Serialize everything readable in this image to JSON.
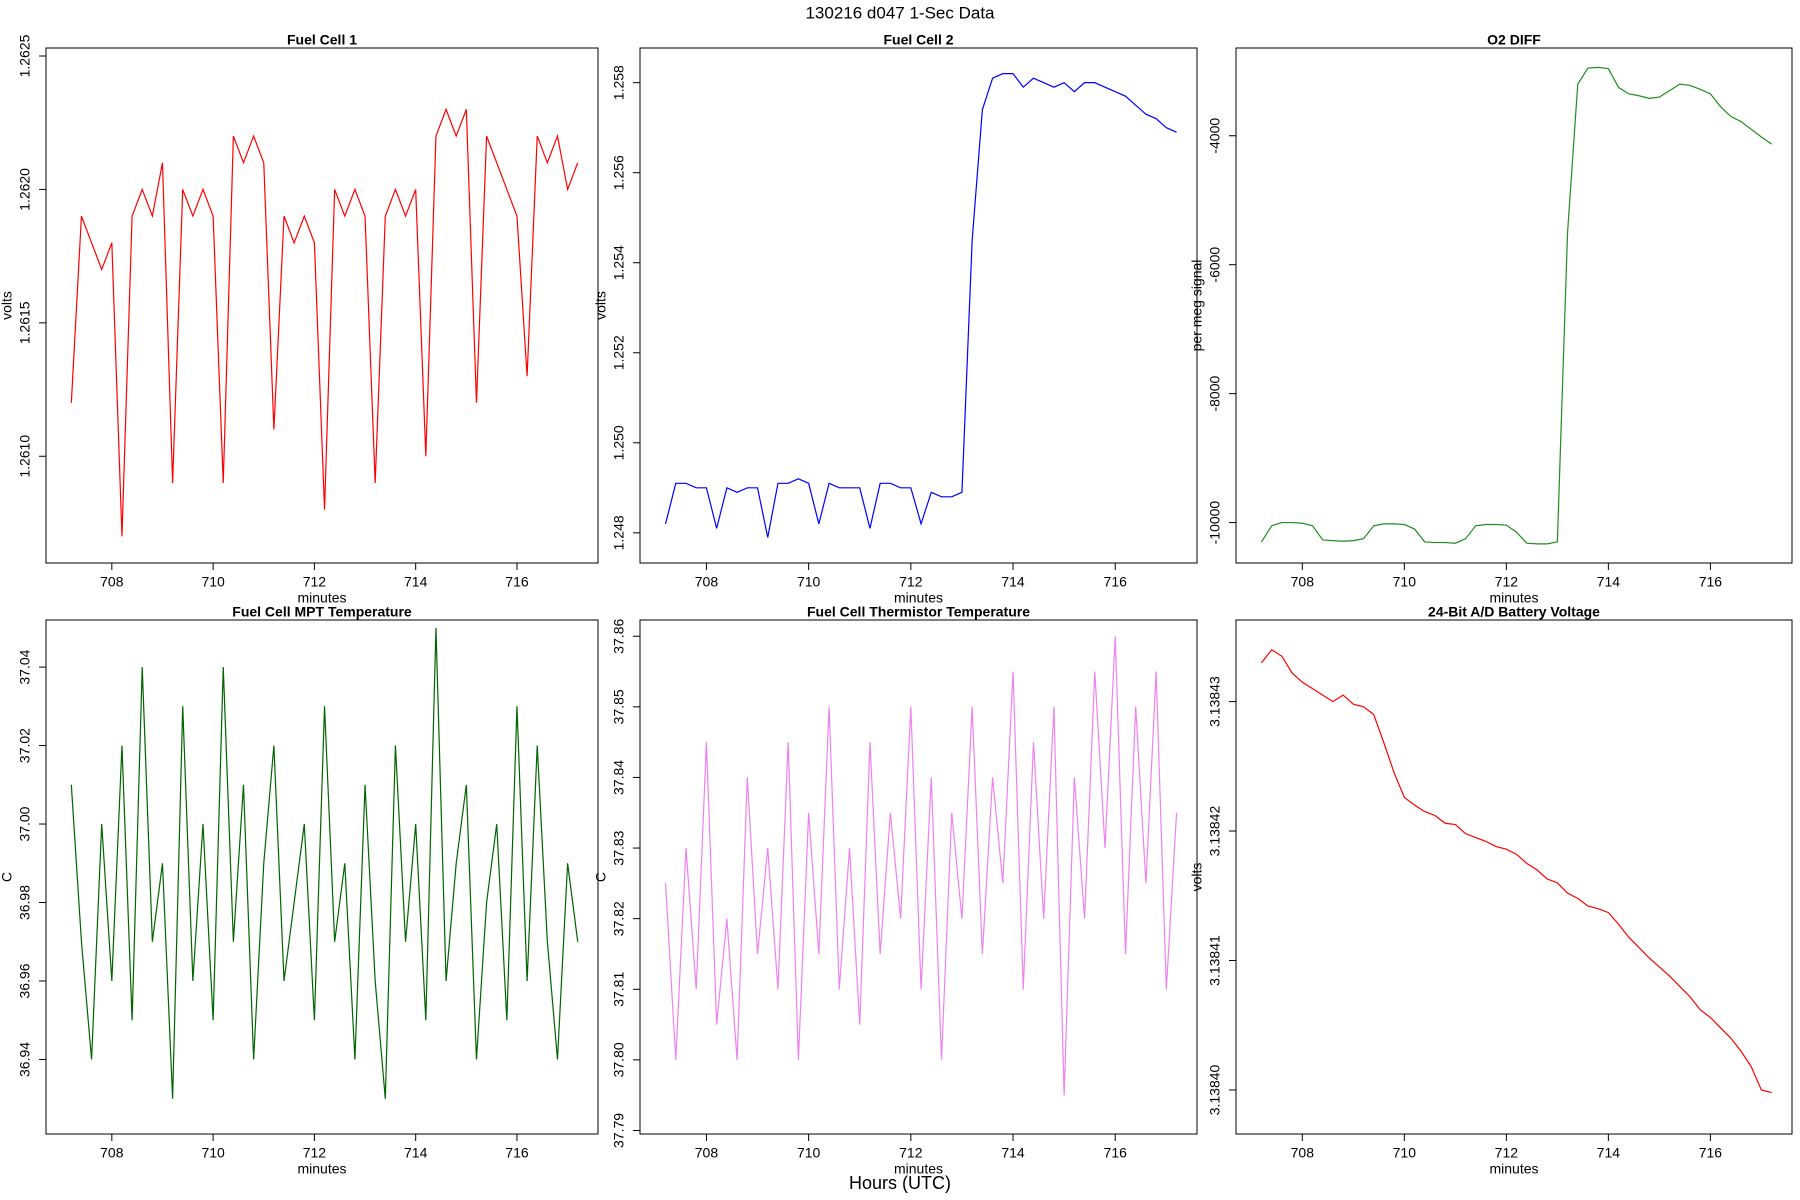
{
  "title": "130216   d047   1-Sec Data",
  "xlabel": "Hours (UTC)",
  "chart_data": [
    {
      "type": "line",
      "title": "Fuel Cell 1",
      "xlabel": "minutes",
      "ylabel": "volts",
      "color": "#ff0000",
      "x": [
        707.2,
        707.4,
        707.6,
        707.8,
        708.0,
        708.2,
        708.4,
        708.6,
        708.8,
        709.0,
        709.2,
        709.4,
        709.6,
        709.8,
        710.0,
        710.2,
        710.4,
        710.6,
        710.8,
        711.0,
        711.2,
        711.4,
        711.6,
        711.8,
        712.0,
        712.2,
        712.4,
        712.6,
        712.8,
        713.0,
        713.2,
        713.4,
        713.6,
        713.8,
        714.0,
        714.2,
        714.4,
        714.6,
        714.8,
        715.0,
        715.2,
        715.4,
        715.6,
        715.8,
        716.0,
        716.2,
        716.4,
        716.6,
        716.8,
        717.0,
        717.2
      ],
      "values": [
        1.2612,
        1.2619,
        1.2618,
        1.2617,
        1.2618,
        1.2607,
        1.2619,
        1.262,
        1.2619,
        1.2621,
        1.2609,
        1.262,
        1.2619,
        1.262,
        1.2619,
        1.2609,
        1.2622,
        1.2621,
        1.2622,
        1.2621,
        1.2611,
        1.2619,
        1.2618,
        1.2619,
        1.2618,
        1.2608,
        1.262,
        1.2619,
        1.262,
        1.2619,
        1.2609,
        1.2619,
        1.262,
        1.2619,
        1.262,
        1.261,
        1.2622,
        1.2623,
        1.2622,
        1.2623,
        1.2612,
        1.2622,
        1.2621,
        1.262,
        1.2619,
        1.2613,
        1.2622,
        1.2621,
        1.2622,
        1.262,
        1.2621
      ],
      "xlim": [
        706.7,
        717.6
      ],
      "xticks": [
        708,
        710,
        712,
        714,
        716
      ],
      "ylim": [
        1.2606,
        1.26253
      ],
      "yticks": [
        {
          "value": 1.261,
          "label": "1.2610"
        },
        1.2615,
        {
          "value": 1.262,
          "label": "1.2620"
        },
        1.2625
      ]
    },
    {
      "type": "line",
      "title": "Fuel Cell 2",
      "xlabel": "minutes",
      "ylabel": "volts",
      "color": "#0000ff",
      "x": [
        707.2,
        707.4,
        707.6,
        707.8,
        708.0,
        708.2,
        708.4,
        708.6,
        708.8,
        709.0,
        709.2,
        709.4,
        709.6,
        709.8,
        710.0,
        710.2,
        710.4,
        710.6,
        710.8,
        711.0,
        711.2,
        711.4,
        711.6,
        711.8,
        712.0,
        712.2,
        712.4,
        712.6,
        712.8,
        713.0,
        713.2,
        713.4,
        713.6,
        713.8,
        714.0,
        714.2,
        714.4,
        714.6,
        714.8,
        715.0,
        715.2,
        715.4,
        715.6,
        715.8,
        716.0,
        716.2,
        716.4,
        716.6,
        716.8,
        717.0,
        717.2
      ],
      "values": [
        1.2482,
        1.2491,
        1.2491,
        1.249,
        1.249,
        1.2481,
        1.249,
        1.2489,
        1.249,
        1.249,
        1.2479,
        1.2491,
        1.2491,
        1.2492,
        1.2491,
        1.2482,
        1.2491,
        1.249,
        1.249,
        1.249,
        1.2481,
        1.2491,
        1.2491,
        1.249,
        1.249,
        1.2482,
        1.2489,
        1.2488,
        1.2488,
        1.2489,
        1.2545,
        1.2574,
        1.2581,
        1.2582,
        1.2582,
        1.2579,
        1.2581,
        1.258,
        1.2579,
        1.258,
        1.2578,
        1.258,
        1.258,
        1.2579,
        1.2578,
        1.2577,
        1.2575,
        1.2573,
        1.2572,
        1.257,
        1.2569
      ],
      "xlim": [
        706.7,
        717.6
      ],
      "xticks": [
        708,
        710,
        712,
        714,
        716
      ],
      "ylim": [
        1.24733,
        1.25877
      ],
      "yticks": [
        1.248,
        {
          "value": 1.25,
          "label": "1.250"
        },
        1.252,
        1.254,
        1.256,
        1.258
      ]
    },
    {
      "type": "line",
      "title": "O2 DIFF",
      "xlabel": "minutes",
      "ylabel": "per meg signal",
      "color": "#228b22",
      "x": [
        707.2,
        707.4,
        707.6,
        707.8,
        708.0,
        708.2,
        708.4,
        708.6,
        708.8,
        709.0,
        709.2,
        709.4,
        709.6,
        709.8,
        710.0,
        710.2,
        710.4,
        710.6,
        710.8,
        711.0,
        711.2,
        711.4,
        711.6,
        711.8,
        712.0,
        712.2,
        712.4,
        712.6,
        712.8,
        713.0,
        713.2,
        713.4,
        713.6,
        713.8,
        714.0,
        714.2,
        714.4,
        714.6,
        714.8,
        715.0,
        715.2,
        715.4,
        715.6,
        715.8,
        716.0,
        716.2,
        716.4,
        716.6,
        716.8,
        717.0,
        717.2
      ],
      "values": [
        -10300,
        -10050,
        -10000,
        -10000,
        -10010,
        -10050,
        -10270,
        -10280,
        -10290,
        -10280,
        -10250,
        -10050,
        -10020,
        -10020,
        -10030,
        -10100,
        -10300,
        -10310,
        -10310,
        -10320,
        -10250,
        -10050,
        -10030,
        -10030,
        -10040,
        -10150,
        -10320,
        -10330,
        -10330,
        -10300,
        -5500,
        -3200,
        -2950,
        -2940,
        -2960,
        -3250,
        -3350,
        -3380,
        -3420,
        -3400,
        -3300,
        -3200,
        -3220,
        -3280,
        -3350,
        -3550,
        -3700,
        -3780,
        -3900,
        -4020,
        -4130
      ],
      "xlim": [
        706.7,
        717.6
      ],
      "xticks": [
        708,
        710,
        712,
        714,
        716
      ],
      "ylim": [
        -10627,
        -2639
      ],
      "yticks": [
        -10000,
        -8000,
        -6000,
        -4000
      ]
    },
    {
      "type": "line",
      "title": "Fuel Cell MPT Temperature",
      "xlabel": "minutes",
      "ylabel": "C",
      "color": "#006400",
      "x": [
        707.2,
        707.4,
        707.6,
        707.8,
        708.0,
        708.2,
        708.4,
        708.6,
        708.8,
        709.0,
        709.2,
        709.4,
        709.6,
        709.8,
        710.0,
        710.2,
        710.4,
        710.6,
        710.8,
        711.0,
        711.2,
        711.4,
        711.6,
        711.8,
        712.0,
        712.2,
        712.4,
        712.6,
        712.8,
        713.0,
        713.2,
        713.4,
        713.6,
        713.8,
        714.0,
        714.2,
        714.4,
        714.6,
        714.8,
        715.0,
        715.2,
        715.4,
        715.6,
        715.8,
        716.0,
        716.2,
        716.4,
        716.6,
        716.8,
        717.0,
        717.2
      ],
      "values": [
        37.01,
        36.97,
        36.94,
        37.0,
        36.96,
        37.02,
        36.95,
        37.04,
        36.97,
        36.99,
        36.93,
        37.03,
        36.96,
        37.0,
        36.95,
        37.04,
        36.97,
        37.01,
        36.94,
        36.99,
        37.02,
        36.96,
        36.98,
        37.0,
        36.95,
        37.03,
        36.97,
        36.99,
        36.94,
        37.01,
        36.96,
        36.93,
        37.02,
        36.97,
        37.0,
        36.95,
        37.05,
        36.96,
        36.99,
        37.01,
        36.94,
        36.98,
        37.0,
        36.95,
        37.03,
        36.96,
        37.02,
        36.97,
        36.94,
        36.99,
        36.97
      ],
      "xlim": [
        706.7,
        717.6
      ],
      "xticks": [
        708,
        710,
        712,
        714,
        716
      ],
      "ylim": [
        36.921,
        37.052
      ],
      "yticks": [
        36.94,
        36.96,
        36.98,
        {
          "value": 37,
          "label": "37.00"
        },
        37.02,
        37.04
      ]
    },
    {
      "type": "line",
      "title": "Fuel Cell Thermistor Temperature",
      "xlabel": "minutes",
      "ylabel": "C",
      "color": "#ee82ee",
      "x": [
        707.2,
        707.4,
        707.6,
        707.8,
        708.0,
        708.2,
        708.4,
        708.6,
        708.8,
        709.0,
        709.2,
        709.4,
        709.6,
        709.8,
        710.0,
        710.2,
        710.4,
        710.6,
        710.8,
        711.0,
        711.2,
        711.4,
        711.6,
        711.8,
        712.0,
        712.2,
        712.4,
        712.6,
        712.8,
        713.0,
        713.2,
        713.4,
        713.6,
        713.8,
        714.0,
        714.2,
        714.4,
        714.6,
        714.8,
        715.0,
        715.2,
        715.4,
        715.6,
        715.8,
        716.0,
        716.2,
        716.4,
        716.6,
        716.8,
        717.0,
        717.2
      ],
      "values": [
        37.825,
        37.8,
        37.83,
        37.81,
        37.845,
        37.805,
        37.82,
        37.8,
        37.84,
        37.815,
        37.83,
        37.81,
        37.845,
        37.8,
        37.835,
        37.815,
        37.85,
        37.81,
        37.83,
        37.805,
        37.845,
        37.815,
        37.835,
        37.82,
        37.85,
        37.81,
        37.84,
        37.8,
        37.835,
        37.82,
        37.85,
        37.815,
        37.84,
        37.825,
        37.855,
        37.81,
        37.845,
        37.82,
        37.85,
        37.795,
        37.84,
        37.82,
        37.855,
        37.83,
        37.86,
        37.815,
        37.85,
        37.825,
        37.855,
        37.81,
        37.835
      ],
      "xlim": [
        706.7,
        717.6
      ],
      "xticks": [
        708,
        710,
        712,
        714,
        716
      ],
      "ylim": [
        37.7895,
        37.8623
      ],
      "yticks": [
        37.79,
        {
          "value": 37.8,
          "label": "37.80"
        },
        37.81,
        37.82,
        37.83,
        37.84,
        37.85,
        37.86
      ]
    },
    {
      "type": "line",
      "title": "24-Bit A/D Battery Voltage",
      "xlabel": "minutes",
      "ylabel": "volts",
      "color": "#ff0000",
      "x": [
        707.2,
        707.4,
        707.6,
        707.8,
        708.0,
        708.2,
        708.4,
        708.6,
        708.8,
        709.0,
        709.2,
        709.4,
        709.6,
        709.8,
        710.0,
        710.2,
        710.4,
        710.6,
        710.8,
        711.0,
        711.2,
        711.4,
        711.6,
        711.8,
        712.0,
        712.2,
        712.4,
        712.6,
        712.8,
        713.0,
        713.2,
        713.4,
        713.6,
        713.8,
        714.0,
        714.2,
        714.4,
        714.6,
        714.8,
        715.0,
        715.2,
        715.4,
        715.6,
        715.8,
        716.0,
        716.2,
        716.4,
        716.6,
        716.8,
        717.0,
        717.2
      ],
      "values": [
        3.138433,
        3.138434,
        3.1384335,
        3.1384322,
        3.1384315,
        3.138431,
        3.1384305,
        3.13843,
        3.1384305,
        3.1384298,
        3.1384296,
        3.138429,
        3.1384268,
        3.1384245,
        3.1384226,
        3.138422,
        3.1384215,
        3.1384212,
        3.1384206,
        3.1384205,
        3.1384198,
        3.1384195,
        3.1384192,
        3.1384188,
        3.1384186,
        3.1384182,
        3.1384175,
        3.138417,
        3.1384163,
        3.138416,
        3.1384152,
        3.1384148,
        3.1384142,
        3.138414,
        3.1384137,
        3.1384128,
        3.1384118,
        3.138411,
        3.1384102,
        3.1384095,
        3.1384088,
        3.138408,
        3.1384072,
        3.1384062,
        3.1384056,
        3.1384048,
        3.138404,
        3.138403,
        3.1384018,
        3.1384,
        3.1383998
      ],
      "xlim": [
        706.7,
        717.6
      ],
      "xticks": [
        708,
        710,
        712,
        714,
        716
      ],
      "ylim": [
        3.1383966,
        3.1384363
      ],
      "yticks": [
        {
          "value": 3.1384,
          "label": "3.13840"
        },
        3.13841,
        3.13842,
        3.13843
      ]
    }
  ]
}
